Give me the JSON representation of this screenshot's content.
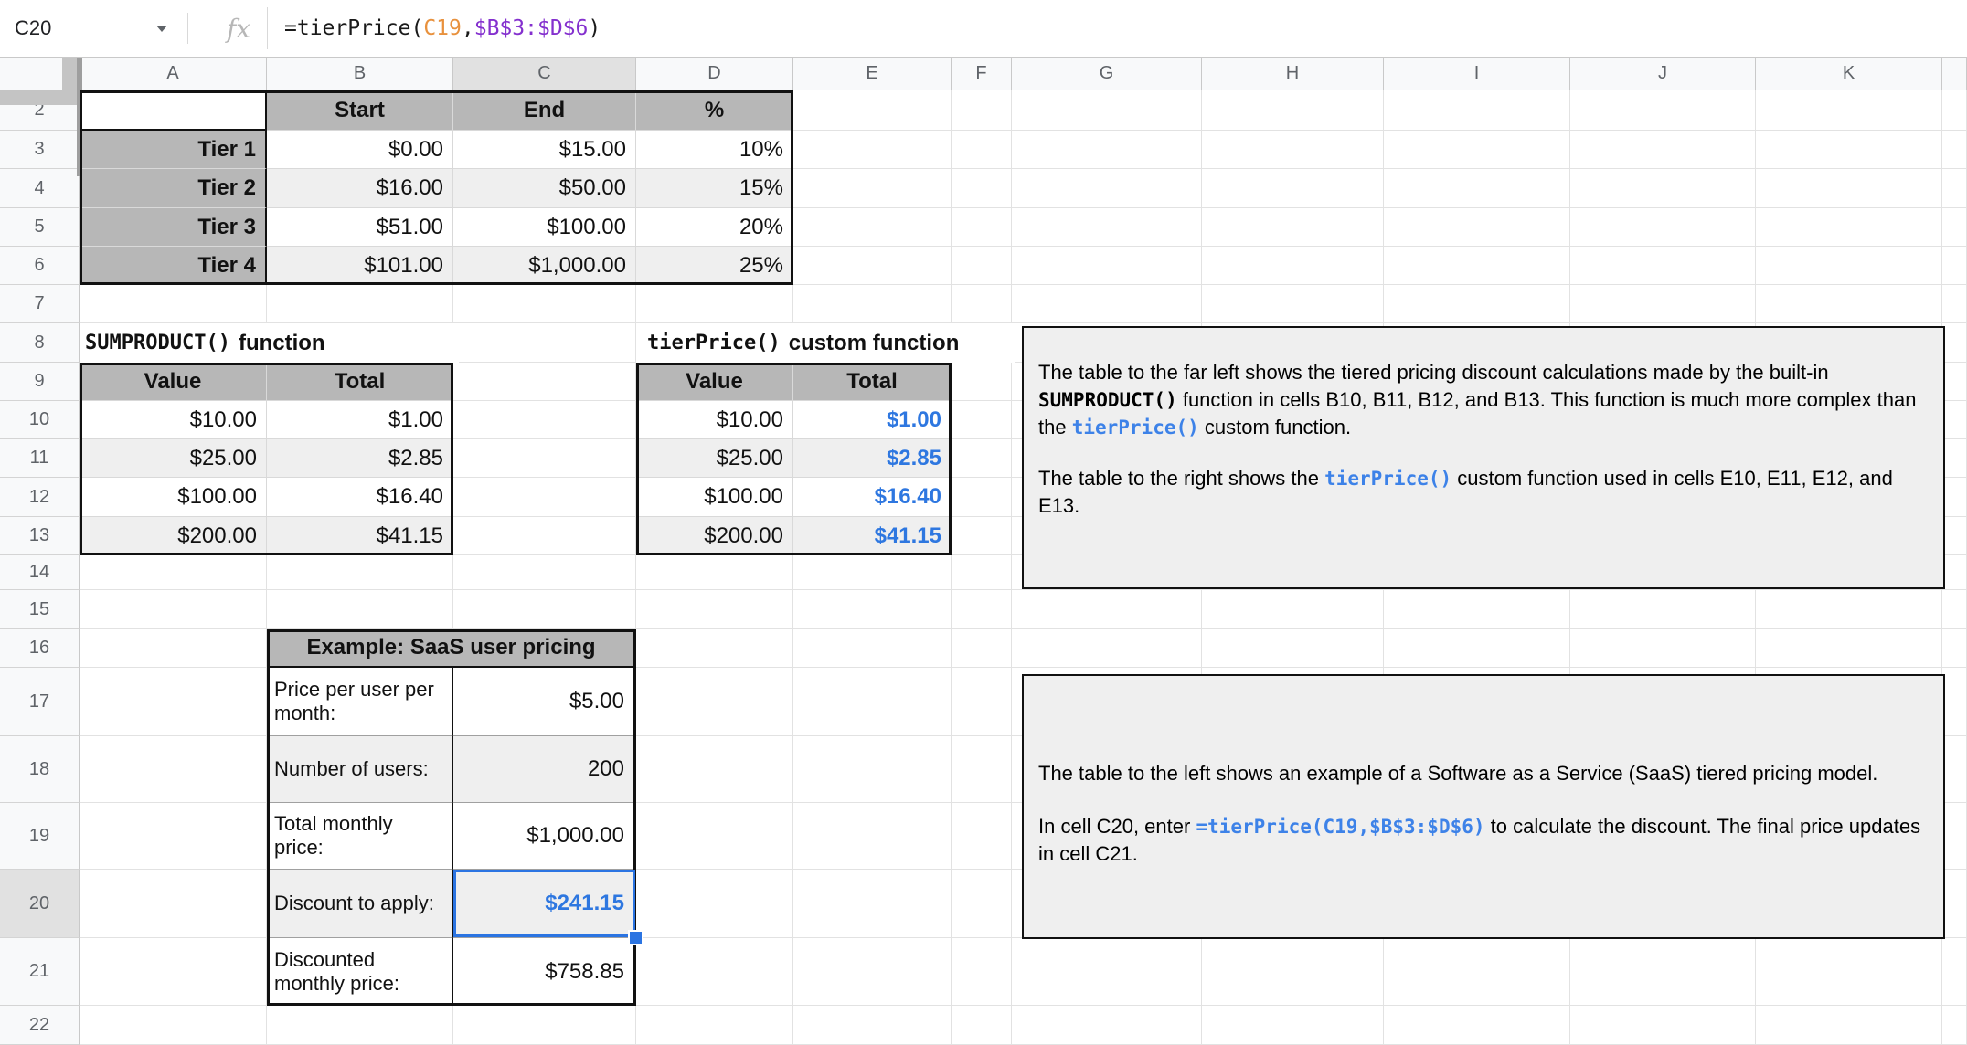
{
  "formula_bar": {
    "cell_ref": "C20",
    "fx": "fx",
    "formula_parts": {
      "head": "=tierPrice(",
      "arg_cell": "C19",
      "separator": ",",
      "arg_range": "$B$3:$D$6",
      "tail": ")"
    }
  },
  "grid": {
    "columns": [
      "A",
      "B",
      "C",
      "D",
      "E",
      "F",
      "G",
      "H",
      "I",
      "J",
      "K"
    ],
    "rows": [
      "2",
      "3",
      "4",
      "5",
      "6",
      "7",
      "8",
      "9",
      "10",
      "11",
      "12",
      "13",
      "14",
      "15",
      "16",
      "17",
      "18",
      "19",
      "20",
      "21",
      "22"
    ]
  },
  "tier_table": {
    "headers": {
      "start": "Start",
      "end": "End",
      "percent": "%"
    },
    "rows": [
      {
        "label": "Tier 1",
        "start": "$0.00",
        "end": "$15.00",
        "percent": "10%"
      },
      {
        "label": "Tier 2",
        "start": "$16.00",
        "end": "$50.00",
        "percent": "15%"
      },
      {
        "label": "Tier 3",
        "start": "$51.00",
        "end": "$100.00",
        "percent": "20%"
      },
      {
        "label": "Tier 4",
        "start": "$101.00",
        "end": "$1,000.00",
        "percent": "25%"
      }
    ]
  },
  "sumproduct_table": {
    "title_code": "SUMPRODUCT()",
    "title_text": "function",
    "columns": {
      "value": "Value",
      "total": "Total"
    },
    "rows": [
      {
        "value": "$10.00",
        "total": "$1.00"
      },
      {
        "value": "$25.00",
        "total": "$2.85"
      },
      {
        "value": "$100.00",
        "total": "$16.40"
      },
      {
        "value": "$200.00",
        "total": "$41.15"
      }
    ]
  },
  "tierprice_table": {
    "title_code": "tierPrice()",
    "title_text": "custom function",
    "columns": {
      "value": "Value",
      "total": "Total"
    },
    "rows": [
      {
        "value": "$10.00",
        "total": "$1.00"
      },
      {
        "value": "$25.00",
        "total": "$2.85"
      },
      {
        "value": "$100.00",
        "total": "$16.40"
      },
      {
        "value": "$200.00",
        "total": "$41.15"
      }
    ]
  },
  "saas_table": {
    "title": "Example: SaaS user pricing",
    "rows": [
      {
        "label": "Price per user per month:",
        "value": "$5.00"
      },
      {
        "label": "Number of users:",
        "value": "200"
      },
      {
        "label": "Total monthly price:",
        "value": "$1,000.00"
      },
      {
        "label": "Discount to apply:",
        "value": "$241.15"
      },
      {
        "label": "Discounted monthly price:",
        "value": "$758.85"
      }
    ]
  },
  "notes": {
    "box1": {
      "p1_a": "The table to the far left shows the tiered pricing discount calculations made by the built-in ",
      "p1_code": "SUMPRODUCT()",
      "p1_b": " function in cells B10, B11, B12, and B13. This function is much more complex than the ",
      "p1_code2": "tierPrice()",
      "p1_c": " custom function.",
      "p2_a": "The table to the right shows the ",
      "p2_code": "tierPrice()",
      "p2_b": " custom function used in cells E10, E11, E12, and E13."
    },
    "box2": {
      "p1": "The table to the left shows an example of a Software as a Service (SaaS) tiered pricing model.",
      "p2_a": "In cell C20, enter ",
      "p2_code": "=tierPrice(C19,$B$3:$D$6)",
      "p2_b": " to calculate the discount. The final price updates in cell C21."
    }
  },
  "colors": {
    "selection_blue": "#2b74e2",
    "value_blue": "#2e77e0",
    "code_blue": "#3d82e8",
    "formula_arg_orange": "#e8913d",
    "formula_range_purple": "#8430ce",
    "table_header_gray": "#b7b7b7",
    "banding_gray": "#efefef",
    "note_background": "#efefef"
  }
}
